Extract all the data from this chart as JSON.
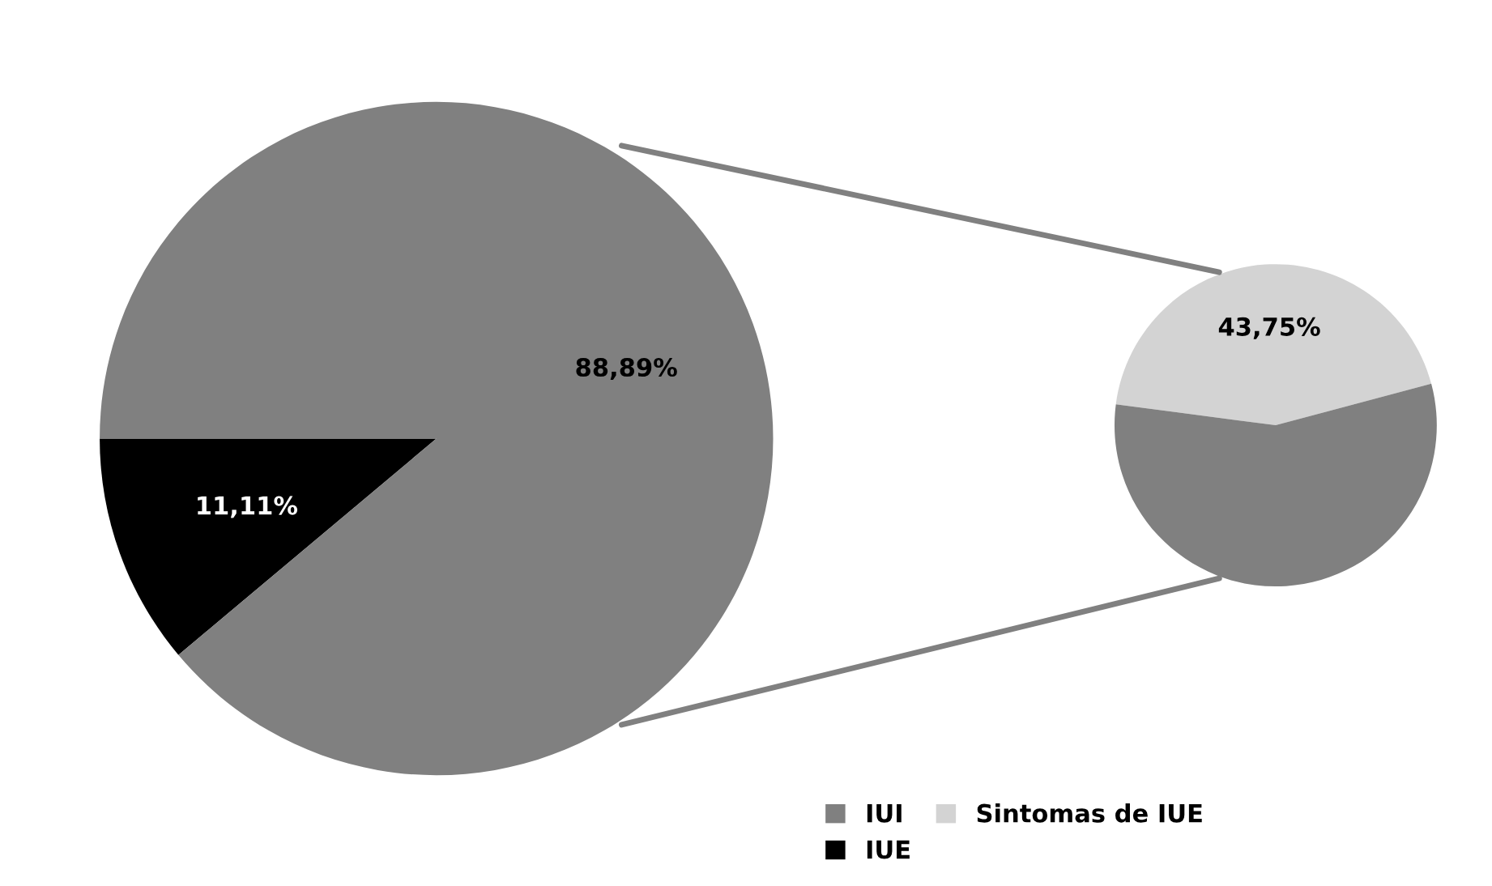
{
  "chart_data": [
    {
      "type": "pie",
      "categories": [
        "IUE",
        "IUI"
      ],
      "values": [
        11.11,
        88.89
      ],
      "colors": [
        "#000000",
        "#808080"
      ],
      "value_labels": [
        "11,11%",
        "88,89%"
      ],
      "legend": "bottom"
    },
    {
      "type": "pie",
      "categories": [
        "Sintomas de IUE",
        null
      ],
      "values": [
        43.75,
        56.25
      ],
      "colors": [
        "#d3d3d3",
        "#808080"
      ],
      "value_labels": [
        "43,75%",
        null
      ]
    }
  ]
}
